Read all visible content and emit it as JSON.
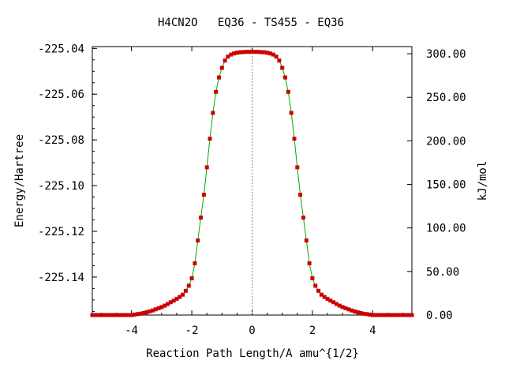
{
  "chart_data": {
    "type": "line",
    "title": "H4CN2O   EQ36 - TS455 - EQ36",
    "xlabel": "Reaction Path Length/A amu^{1/2}",
    "ylabel": "Energy/Hartree",
    "y2label": "kJ/mol",
    "xlim": [
      -5.3,
      5.3
    ],
    "ylim": [
      -225.1566,
      -225.0392
    ],
    "x_ticks": [
      "-4",
      "-2",
      "0",
      "2",
      "4"
    ],
    "x_tick_values": [
      -4,
      -2,
      0,
      2,
      4
    ],
    "y_ticks": [
      "-225.04",
      "-225.06",
      "-225.08",
      "-225.10",
      "-225.12",
      "-225.14"
    ],
    "y_tick_values": [
      -225.04,
      -225.06,
      -225.08,
      -225.1,
      -225.12,
      -225.14
    ],
    "y2_ticks": [
      "300.00",
      "250.00",
      "200.00",
      "150.00",
      "100.00",
      "50.00",
      "0.00"
    ],
    "y2_tick_values": [
      300,
      250,
      200,
      150,
      100,
      50,
      0
    ],
    "y2_zero_energy": -225.1566,
    "hartree_to_kj": 2625.5,
    "ts_marker_x": 0,
    "line_color": "#00aa00",
    "marker_color": "#cc0000",
    "series": [
      {
        "x": [
          -5.3,
          -5.2,
          -5.1,
          -5.0,
          -4.9,
          -4.8,
          -4.7,
          -4.6,
          -4.5,
          -4.4,
          -4.3,
          -4.2,
          -4.1,
          -4.0,
          -3.9,
          -3.8,
          -3.7,
          -3.6,
          -3.5,
          -3.4,
          -3.3,
          -3.2,
          -3.1,
          -3.0,
          -2.9,
          -2.8,
          -2.7,
          -2.6,
          -2.5,
          -2.4,
          -2.3,
          -2.2,
          -2.1,
          -2.0,
          -1.9,
          -1.8,
          -1.7,
          -1.6,
          -1.5,
          -1.4,
          -1.3,
          -1.2,
          -1.1,
          -1.0,
          -0.9,
          -0.8,
          -0.7,
          -0.6,
          -0.5,
          -0.4,
          -0.3,
          -0.2,
          -0.1,
          0.0,
          0.1,
          0.2,
          0.3,
          0.4,
          0.5,
          0.6,
          0.7,
          0.8,
          0.9,
          1.0,
          1.1,
          1.2,
          1.3,
          1.4,
          1.5,
          1.6,
          1.7,
          1.8,
          1.9,
          2.0,
          2.1,
          2.2,
          2.3,
          2.4,
          2.5,
          2.6,
          2.7,
          2.8,
          2.9,
          3.0,
          3.1,
          3.2,
          3.3,
          3.4,
          3.5,
          3.6,
          3.7,
          3.8,
          3.9,
          4.0,
          4.1,
          4.2,
          4.3,
          4.4,
          4.5,
          4.6,
          4.7,
          4.8,
          4.9,
          5.0,
          5.1,
          5.2,
          5.3
        ],
        "y": [
          -225.1566,
          -225.1566,
          -225.1566,
          -225.1566,
          -225.1566,
          -225.1566,
          -225.1566,
          -225.1566,
          -225.1566,
          -225.1566,
          -225.1566,
          -225.1566,
          -225.1566,
          -225.1566,
          -225.1564,
          -225.1562,
          -225.156,
          -225.1557,
          -225.1554,
          -225.155,
          -225.1546,
          -225.1541,
          -225.1536,
          -225.1531,
          -225.1525,
          -225.1518,
          -225.151,
          -225.1503,
          -225.1495,
          -225.1487,
          -225.1477,
          -225.146,
          -225.1438,
          -225.1405,
          -225.134,
          -225.124,
          -225.114,
          -225.104,
          -225.092,
          -225.0795,
          -225.0682,
          -225.059,
          -225.0527,
          -225.0485,
          -225.0453,
          -225.0436,
          -225.0427,
          -225.0422,
          -225.0419,
          -225.0417,
          -225.0416,
          -225.0415,
          -225.0415,
          -225.0414,
          -225.0415,
          -225.0415,
          -225.0416,
          -225.0417,
          -225.0419,
          -225.0422,
          -225.0427,
          -225.0436,
          -225.0453,
          -225.0485,
          -225.0527,
          -225.059,
          -225.0682,
          -225.0795,
          -225.092,
          -225.104,
          -225.114,
          -225.124,
          -225.134,
          -225.1405,
          -225.1438,
          -225.146,
          -225.1477,
          -225.1487,
          -225.1495,
          -225.1503,
          -225.151,
          -225.1518,
          -225.1525,
          -225.1531,
          -225.1536,
          -225.1541,
          -225.1546,
          -225.155,
          -225.1554,
          -225.1557,
          -225.156,
          -225.1562,
          -225.1564,
          -225.1566,
          -225.1566,
          -225.1566,
          -225.1566,
          -225.1566,
          -225.1566,
          -225.1566,
          -225.1566,
          -225.1566,
          -225.1566,
          -225.1566,
          -225.1566,
          -225.1566,
          -225.1566
        ]
      }
    ]
  }
}
